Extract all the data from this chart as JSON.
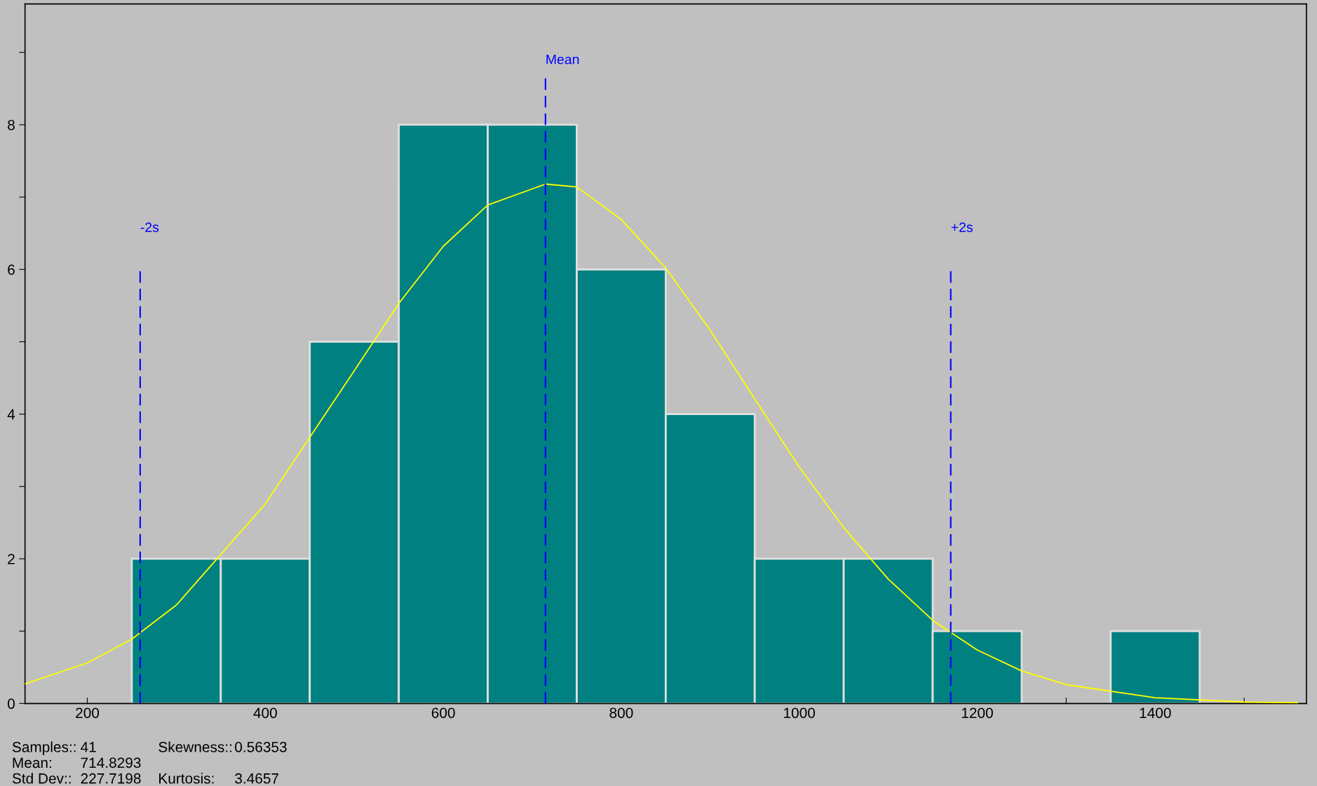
{
  "chart_data": {
    "type": "histogram",
    "bins": [
      250,
      350,
      450,
      550,
      650,
      750,
      850,
      950,
      1050,
      1150,
      1250,
      1350,
      1450
    ],
    "values": [
      2,
      2,
      5,
      8,
      8,
      6,
      4,
      2,
      2,
      1,
      0,
      1
    ],
    "color": "#008080",
    "series": [
      {
        "type": "line",
        "color": "#ffff00",
        "x": [
          130,
          200,
          250,
          300,
          400,
          500,
          550,
          600,
          650,
          715,
          750,
          800,
          850,
          900,
          950,
          1000,
          1050,
          1100,
          1150,
          1200,
          1250,
          1300,
          1400,
          1500,
          1560
        ],
        "values": [
          0.27,
          0.56,
          0.89,
          1.36,
          2.76,
          4.6,
          5.53,
          6.32,
          6.89,
          7.18,
          7.14,
          6.69,
          6.02,
          5.16,
          4.21,
          3.27,
          2.43,
          1.72,
          1.15,
          0.74,
          0.45,
          0.26,
          0.08,
          0.02,
          0.01
        ]
      }
    ],
    "xlim": [
      130,
      1570
    ],
    "ylim": [
      0,
      9.67
    ],
    "xticks": [
      200,
      {
        "value": 300,
        "label": null
      },
      400,
      {
        "value": 500,
        "label": null
      },
      600,
      {
        "value": 700,
        "label": null
      },
      800,
      {
        "value": 900,
        "label": null
      },
      1000,
      {
        "value": 1100,
        "label": null
      },
      1200,
      {
        "value": 1300,
        "label": null
      },
      1400,
      {
        "value": 1500,
        "label": null
      }
    ],
    "yticks": [
      0,
      {
        "value": 1,
        "label": null
      },
      2,
      {
        "value": 3,
        "label": null
      },
      4,
      {
        "value": 5,
        "label": null
      },
      6,
      {
        "value": 7,
        "label": null
      },
      8,
      {
        "value": 9,
        "label": null
      }
    ],
    "ref_lines": [
      {
        "axis": "x",
        "value": 714.8293,
        "label": "Mean",
        "color": "#0000ff",
        "line_style": "dashed"
      },
      {
        "axis": "x",
        "value": 259.3897,
        "label": "-2s",
        "color": "#0000ff",
        "line_style": "dashed"
      },
      {
        "axis": "x",
        "value": 1170.2689,
        "label": "+2s",
        "color": "#0000ff",
        "line_style": "dashed"
      }
    ],
    "annotations": [
      "Samples::",
      "41",
      "Skewness::",
      "0.56353",
      "Mean:",
      "714.8293",
      "Std Dev::",
      "227.7198",
      "Kurtosis:",
      "3.4657"
    ],
    "grid": false,
    "legend": false
  }
}
